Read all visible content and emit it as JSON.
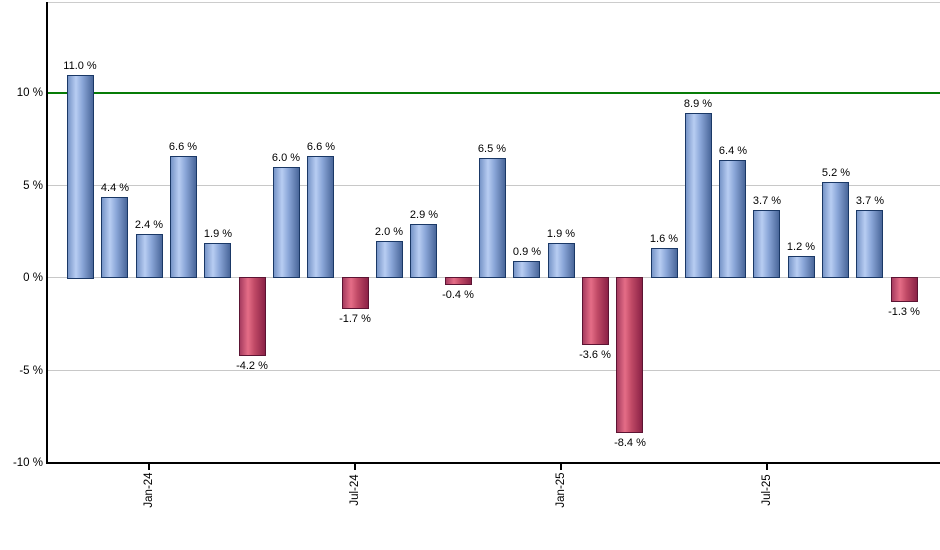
{
  "chart_data": {
    "type": "bar",
    "title": "",
    "unit": "%",
    "values": [
      11.0,
      4.4,
      2.4,
      6.6,
      1.9,
      -4.2,
      6.0,
      6.6,
      -1.7,
      2.0,
      2.9,
      -0.4,
      6.5,
      0.9,
      1.9,
      -3.6,
      -8.4,
      1.6,
      8.9,
      6.4,
      3.7,
      1.2,
      5.2,
      3.7,
      -1.3
    ],
    "bar_labels": [
      "11.0 %",
      "4.4 %",
      "2.4 %",
      "6.6 %",
      "1.9 %",
      "-4.2 %",
      "6.0 %",
      "6.6 %",
      "-1.7 %",
      "2.0 %",
      "2.9 %",
      "-0.4 %",
      "6.5 %",
      "0.9 %",
      "1.9 %",
      "-3.6 %",
      "-8.4 %",
      "1.6 %",
      "8.9 %",
      "6.4 %",
      "3.7 %",
      "1.2 %",
      "5.2 %",
      "3.7 %",
      "-1.3 %"
    ],
    "x_ticks": [
      {
        "bar_index": 2,
        "label": "Jan-24"
      },
      {
        "bar_index": 8,
        "label": "Jul-24"
      },
      {
        "bar_index": 14,
        "label": "Jan-25"
      },
      {
        "bar_index": 20,
        "label": "Jul-25"
      }
    ],
    "y_ticks": [
      {
        "value": 10,
        "label": "10 %"
      },
      {
        "value": 5,
        "label": "5 %"
      },
      {
        "value": 0,
        "label": "0 %"
      },
      {
        "value": -5,
        "label": "-5 %"
      },
      {
        "value": -10,
        "label": "-10 %"
      }
    ],
    "gridline_values": [
      5,
      0,
      -5
    ],
    "reference_line": {
      "value": 10,
      "color": "#077c07"
    },
    "ylim": [
      -10,
      14.6
    ],
    "grid": true,
    "legend_position": "none",
    "xlabel": "",
    "ylabel": "",
    "colors": {
      "positive_bar_border": "#1a3866",
      "positive_bar_gradient": [
        "#7795c8",
        "#b8cdf2",
        "#8aa6d8",
        "#4a679a"
      ],
      "negative_bar_border": "#5c1433",
      "negative_bar_gradient": [
        "#a63c60",
        "#e56d87",
        "#c04a66",
        "#8c2247"
      ],
      "gridline": "#c8c8c8",
      "frame_top": "#cccccc",
      "axis": "#000000",
      "label_text": "#000000",
      "background": "#ffffff"
    }
  }
}
